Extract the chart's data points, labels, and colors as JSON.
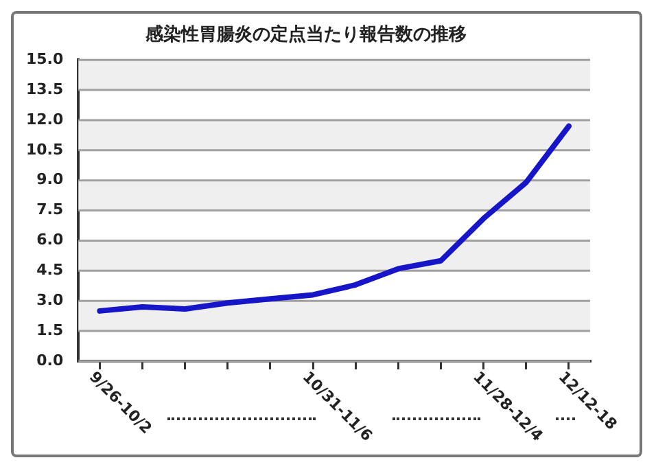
{
  "chart_data": {
    "type": "line",
    "title": "感染性胃腸炎の定点当たり報告数の推移",
    "categories": [
      "9/26-10/2",
      null,
      null,
      null,
      null,
      "10/31-11/6",
      null,
      null,
      null,
      "11/28-12/4",
      null,
      "12/12-18"
    ],
    "series": [
      {
        "color": "#1616c8",
        "values": [
          2.5,
          2.7,
          2.6,
          2.9,
          3.1,
          3.3,
          3.8,
          4.6,
          5.0,
          7.1,
          8.9,
          11.7
        ]
      }
    ],
    "ylim": [
      0,
      15
    ],
    "yticks": [
      {
        "value": 0,
        "label": "0.0"
      },
      1.5,
      {
        "value": 3,
        "label": "3.0"
      },
      4.5,
      {
        "value": 6,
        "label": "6.0"
      },
      7.5,
      {
        "value": 9,
        "label": "9.0"
      },
      10.5,
      {
        "value": 12,
        "label": "12.0"
      },
      13.5,
      {
        "value": 15,
        "label": "15.0"
      }
    ],
    "grid": "y",
    "marker": "none",
    "line_style": "solid",
    "legend": false
  }
}
